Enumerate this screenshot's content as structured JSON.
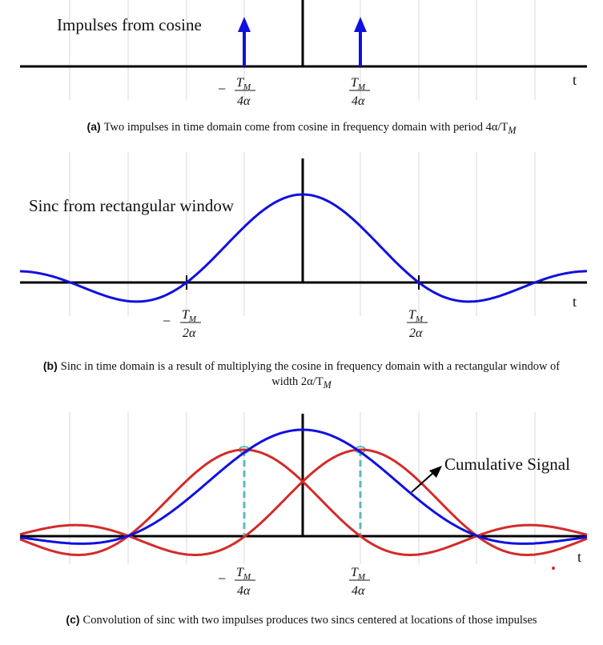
{
  "panels": [
    {
      "label_text": "Impulses from cosine",
      "axis_label": "t",
      "tick_labels": [
        {
          "sign": "−",
          "num": "T",
          "sub": "M",
          "den": "4α"
        },
        {
          "sign": "",
          "num": "T",
          "sub": "M",
          "den": "4α"
        }
      ],
      "caption_tag": "(a)",
      "caption_text": "Two impulses in time domain come from cosine in frequency domain with period 4α/T",
      "caption_sub": "M"
    },
    {
      "label_text": "Sinc from rectangular window",
      "axis_label": "t",
      "tick_labels": [
        {
          "sign": "−",
          "num": "T",
          "sub": "M",
          "den": "2α"
        },
        {
          "sign": "",
          "num": "T",
          "sub": "M",
          "den": "2α"
        }
      ],
      "caption_tag": "(b)",
      "caption_text": "Sinc in time domain is a result of multiplying the cosine in frequency domain with a rectangular window of width 2α/T",
      "caption_sub": "M"
    },
    {
      "label_text": "Cumulative Signal",
      "axis_label": "t",
      "tick_labels": [
        {
          "sign": "−",
          "num": "T",
          "sub": "M",
          "den": "4α"
        },
        {
          "sign": "",
          "num": "T",
          "sub": "M",
          "den": "4α"
        }
      ],
      "caption_tag": "(c)",
      "caption_text": "Convolution of sinc with two impulses produces two sincs centered at locations of those impulses",
      "caption_sub": ""
    }
  ],
  "colors": {
    "blue": "#1010e0",
    "red": "#d42a2a",
    "teal": "#5fb8b8",
    "grid": "#d8d8d8",
    "axis": "#000000"
  }
}
